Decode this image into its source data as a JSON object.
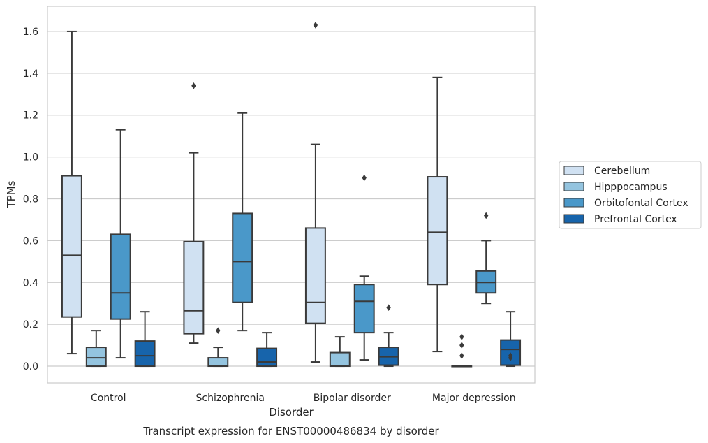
{
  "chart_data": {
    "type": "box",
    "title": "Transcript expression for ENST00000486834 by disorder",
    "xlabel": "Disorder",
    "ylabel": "TPMs",
    "ylim": [
      -0.08,
      1.72
    ],
    "yticks": [
      0.0,
      0.2,
      0.4,
      0.6,
      0.8,
      1.0,
      1.2,
      1.4,
      1.6
    ],
    "ytick_labels": [
      "0.0",
      "0.2",
      "0.4",
      "0.6",
      "0.8",
      "1.0",
      "1.2",
      "1.4",
      "1.6"
    ],
    "grid": true,
    "legend_position": "right",
    "categories": [
      "Control",
      "Schizophrenia",
      "Bipolar disorder",
      "Major depression"
    ],
    "series": [
      {
        "name": "Cerebellum",
        "color": "#d0e1f2",
        "boxes": [
          {
            "whislo": 0.06,
            "q1": 0.235,
            "med": 0.53,
            "q3": 0.91,
            "whishi": 1.6,
            "fliers": []
          },
          {
            "whislo": 0.11,
            "q1": 0.155,
            "med": 0.265,
            "q3": 0.595,
            "whishi": 1.02,
            "fliers": [
              1.34
            ]
          },
          {
            "whislo": 0.02,
            "q1": 0.205,
            "med": 0.305,
            "q3": 0.66,
            "whishi": 1.06,
            "fliers": [
              1.63
            ]
          },
          {
            "whislo": 0.07,
            "q1": 0.39,
            "med": 0.64,
            "q3": 0.905,
            "whishi": 1.38,
            "fliers": []
          }
        ]
      },
      {
        "name": "Hipppocampus",
        "color": "#94c4df",
        "boxes": [
          {
            "whislo": 0.0,
            "q1": 0.0,
            "med": 0.04,
            "q3": 0.09,
            "whishi": 0.17,
            "fliers": []
          },
          {
            "whislo": 0.0,
            "q1": 0.0,
            "med": 0.0,
            "q3": 0.04,
            "whishi": 0.09,
            "fliers": [
              0.17
            ]
          },
          {
            "whislo": 0.0,
            "q1": 0.0,
            "med": 0.0,
            "q3": 0.065,
            "whishi": 0.14,
            "fliers": []
          },
          {
            "whislo": 0.0,
            "q1": 0.0,
            "med": 0.0,
            "q3": 0.0,
            "whishi": 0.0,
            "fliers": [
              0.14,
              0.1,
              0.05
            ]
          }
        ]
      },
      {
        "name": "Orbitofontal Cortex",
        "color": "#4a98c9",
        "boxes": [
          {
            "whislo": 0.04,
            "q1": 0.225,
            "med": 0.35,
            "q3": 0.63,
            "whishi": 1.13,
            "fliers": []
          },
          {
            "whislo": 0.17,
            "q1": 0.305,
            "med": 0.5,
            "q3": 0.73,
            "whishi": 1.21,
            "fliers": []
          },
          {
            "whislo": 0.03,
            "q1": 0.16,
            "med": 0.31,
            "q3": 0.39,
            "whishi": 0.43,
            "fliers": [
              0.9
            ]
          },
          {
            "whislo": 0.3,
            "q1": 0.35,
            "med": 0.4,
            "q3": 0.455,
            "whishi": 0.6,
            "fliers": [
              0.72
            ]
          }
        ]
      },
      {
        "name": "Prefrontal Cortex",
        "color": "#1764ab",
        "boxes": [
          {
            "whislo": 0.0,
            "q1": 0.0,
            "med": 0.05,
            "q3": 0.12,
            "whishi": 0.26,
            "fliers": []
          },
          {
            "whislo": 0.0,
            "q1": 0.0,
            "med": 0.02,
            "q3": 0.085,
            "whishi": 0.16,
            "fliers": []
          },
          {
            "whislo": 0.0,
            "q1": 0.005,
            "med": 0.045,
            "q3": 0.09,
            "whishi": 0.16,
            "fliers": [
              0.28
            ]
          },
          {
            "whislo": 0.0,
            "q1": 0.005,
            "med": 0.08,
            "q3": 0.125,
            "whishi": 0.26,
            "fliers": [
              0.05,
              0.04
            ]
          }
        ]
      }
    ]
  }
}
